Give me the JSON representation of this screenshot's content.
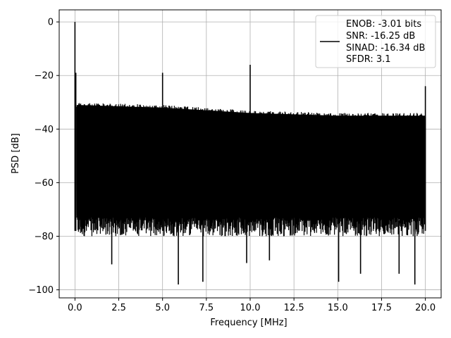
{
  "chart_data": {
    "type": "line",
    "title": "",
    "xlabel": "Frequency [MHz]",
    "ylabel": "PSD [dB]",
    "xlim": [
      -0.9,
      20.9
    ],
    "ylim": [
      -103,
      4.5
    ],
    "xticks": [
      0.0,
      2.5,
      5.0,
      7.5,
      10.0,
      12.5,
      15.0,
      17.5,
      20.0
    ],
    "xtick_labels": [
      "0.0",
      "2.5",
      "5.0",
      "7.5",
      "10.0",
      "12.5",
      "15.0",
      "17.5",
      "20.0"
    ],
    "yticks": [
      0,
      -20,
      -40,
      -60,
      -80,
      -100
    ],
    "ytick_labels": [
      "0",
      "−20",
      "−40",
      "−60",
      "−80",
      "−100"
    ],
    "grid": true,
    "legend_placement": "top-right",
    "legend_lines": [
      "ENOB: -3.01 bits",
      "SNR: -16.25 dB",
      "SINAD: -16.34 dB",
      "SFDR: 3.1"
    ],
    "line_color": "#000000",
    "noise_floor_upper": {
      "x": [
        0.1,
        5,
        10,
        15,
        20
      ],
      "y": [
        -30,
        -31,
        -33,
        -34,
        -34
      ]
    },
    "noise_floor_lower": {
      "x": [
        0.1,
        20
      ],
      "y": [
        -78,
        -78
      ]
    },
    "spikes": [
      {
        "x": 0.0,
        "y": 0.0
      },
      {
        "x": 0.05,
        "y": -19
      },
      {
        "x": 5.0,
        "y": -19
      },
      {
        "x": 10.0,
        "y": -16
      },
      {
        "x": 20.0,
        "y": -24
      }
    ],
    "dips": [
      {
        "x": 2.1,
        "y": -90.5
      },
      {
        "x": 5.9,
        "y": -98
      },
      {
        "x": 7.3,
        "y": -97
      },
      {
        "x": 9.8,
        "y": -90
      },
      {
        "x": 11.1,
        "y": -89
      },
      {
        "x": 15.05,
        "y": -97
      },
      {
        "x": 16.3,
        "y": -94
      },
      {
        "x": 18.5,
        "y": -94
      },
      {
        "x": 19.4,
        "y": -98
      }
    ]
  }
}
